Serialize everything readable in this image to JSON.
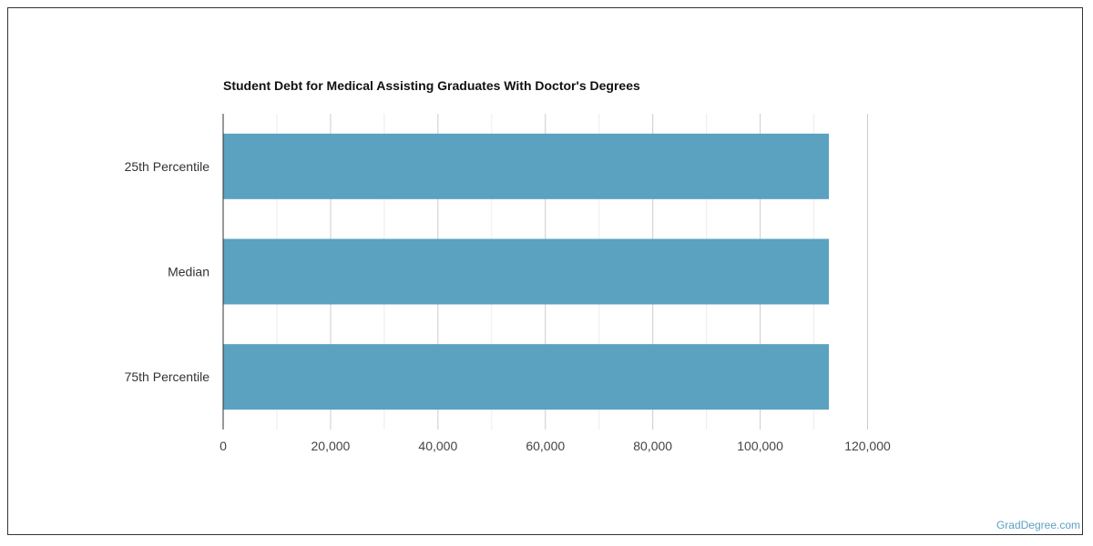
{
  "chart_data": {
    "type": "bar",
    "orientation": "horizontal",
    "title": "Student Debt for Medical Assisting Graduates With Doctor's Degrees",
    "categories": [
      "25th Percentile",
      "Median",
      "75th Percentile"
    ],
    "values": [
      112800,
      112800,
      112800
    ],
    "xlim": [
      0,
      120000
    ],
    "xticks": [
      0,
      20000,
      40000,
      60000,
      80000,
      100000,
      120000
    ],
    "xtick_labels": [
      "0",
      "20,000",
      "40,000",
      "60,000",
      "80,000",
      "100,000",
      "120,000"
    ],
    "grid": true,
    "bar_color": "#5ba1c0"
  },
  "credit": "GradDegree.com"
}
